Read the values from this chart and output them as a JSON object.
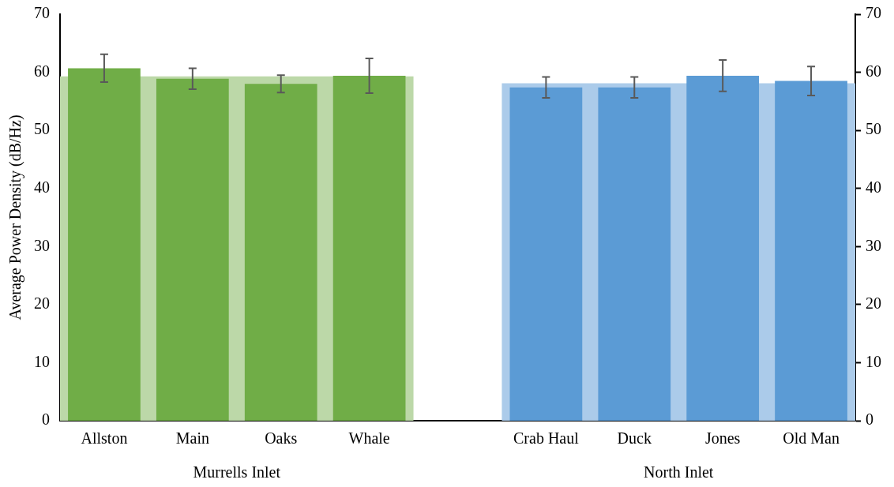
{
  "chart_data": {
    "type": "bar",
    "ylabel": "Average Power Density (dB/Hz)",
    "categories": [
      "Allston",
      "Main",
      "Oaks",
      "Whale",
      null,
      "Crab Haul",
      "Duck",
      "Jones",
      "Old Man"
    ],
    "annotations": [
      "Murrells Inlet",
      "North Inlet"
    ],
    "series": [
      {
        "colors": [
          "#70ad47",
          "#70ad47",
          "#70ad47",
          "#70ad47",
          "#70ad47",
          "#5b9bd5",
          "#5b9bd5",
          "#5b9bd5",
          "#5b9bd5"
        ],
        "values": [
          60.7,
          58.9,
          58.0,
          59.4,
          null,
          57.4,
          57.4,
          59.4,
          58.5
        ],
        "errors": [
          2.4,
          1.8,
          1.5,
          3.0,
          null,
          1.8,
          1.8,
          2.7,
          2.5
        ]
      }
    ],
    "ylim": [
      0,
      70
    ],
    "yticks": [
      0,
      10,
      20,
      30,
      40,
      50,
      60,
      70
    ],
    "y2lim": [
      0,
      70
    ],
    "y2ticks": [
      0,
      10,
      20,
      30,
      40,
      50,
      60,
      70
    ],
    "bands": [
      {
        "axis": "y",
        "from": 0,
        "to": 59.3,
        "color": "#bcd8a8"
      },
      {
        "axis": "y",
        "from": 0,
        "to": 58.1,
        "color": "#abcbea"
      }
    ],
    "grid": false,
    "legend": false
  }
}
